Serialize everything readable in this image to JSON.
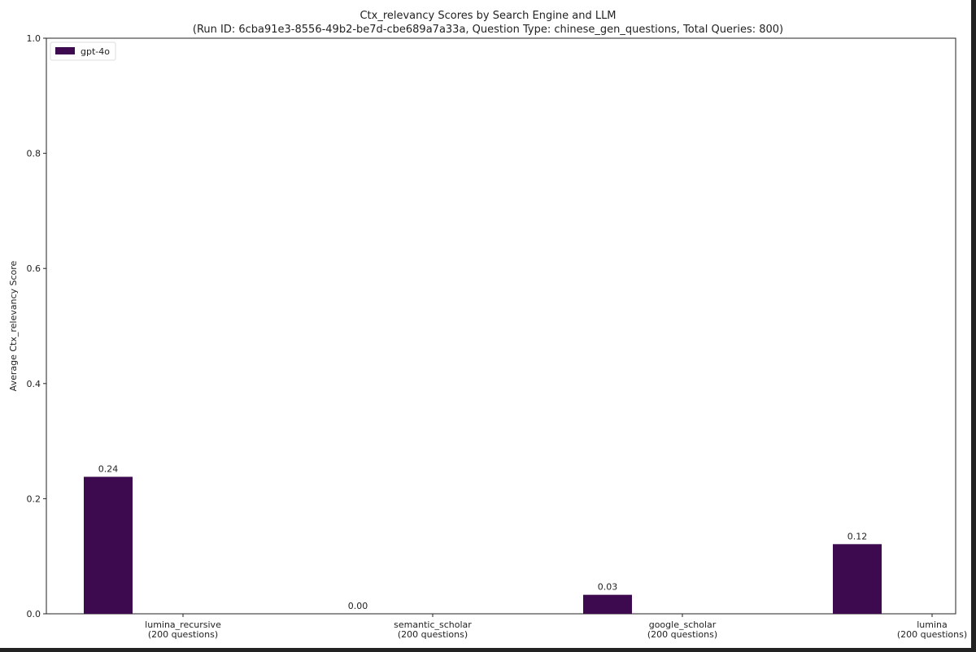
{
  "chart_data": {
    "type": "bar",
    "title": "Ctx_relevancy Scores by Search Engine and LLM",
    "subtitle": "(Run ID: 6cba91e3-8556-49b2-be7d-cbe689a7a33a, Question Type: chinese_gen_questions, Total Queries: 800)",
    "y_label": "Average Ctx_relevancy Score",
    "categories": [
      "lumina_recursive\n(200 questions)",
      "semantic_scholar\n(200 questions)",
      "google_scholar\n(200 questions)",
      "lumina\n(200 questions)"
    ],
    "series": [
      {
        "name": "gpt-4o",
        "color": "#3d0a4f",
        "values": [
          0.238,
          0,
          0.033,
          0.121
        ],
        "value_labels": [
          "0.24",
          "0.00",
          "0.03",
          "0.12"
        ]
      }
    ],
    "ylim": [
      0,
      1
    ],
    "yticks": [
      {
        "value": 0,
        "label": "0.0"
      },
      0.2,
      0.4,
      0.6,
      0.8,
      {
        "value": 1,
        "label": "1.0"
      }
    ],
    "legend": "upper left"
  }
}
